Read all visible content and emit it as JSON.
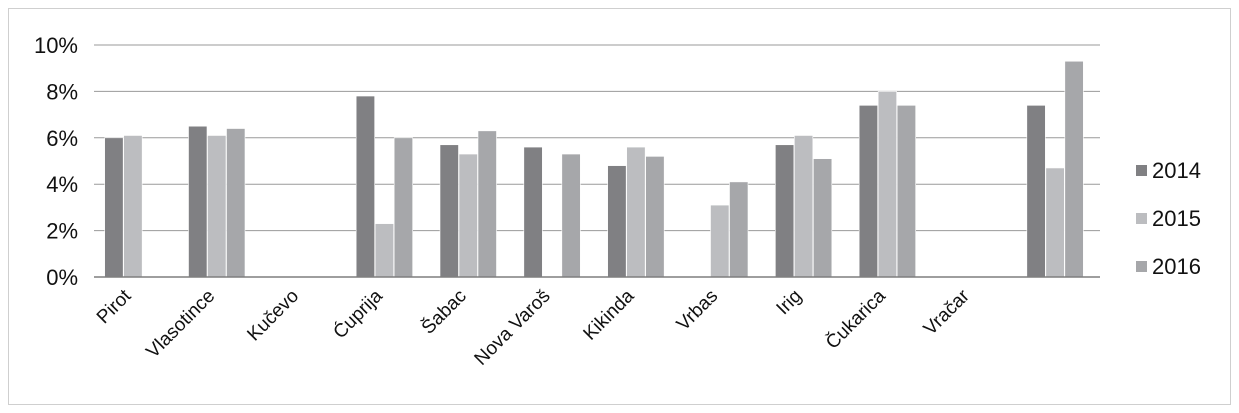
{
  "chart_data": {
    "type": "bar",
    "categories": [
      "Pirot",
      "Vlasotince",
      "Kučevo",
      "Ćuprija",
      "Šabac",
      "Nova Varoš",
      "Kikinda",
      "Vrbas",
      "Irig",
      "Čukarica",
      "Vračar",
      ""
    ],
    "series": [
      {
        "name": "2014",
        "color": "#808083",
        "values": [
          6.0,
          6.5,
          null,
          7.8,
          5.7,
          5.6,
          4.8,
          null,
          5.7,
          7.4,
          null,
          7.4
        ]
      },
      {
        "name": "2015",
        "color": "#bcbdc0",
        "values": [
          6.1,
          6.1,
          null,
          2.3,
          5.3,
          null,
          5.6,
          3.1,
          6.1,
          8.0,
          null,
          4.7
        ]
      },
      {
        "name": "2016",
        "color": "#a6a7aa",
        "values": [
          null,
          6.4,
          null,
          6.0,
          6.3,
          5.3,
          5.2,
          4.1,
          5.1,
          7.4,
          null,
          9.3
        ]
      }
    ],
    "y_ticks": [
      "0%",
      "2%",
      "4%",
      "6%",
      "8%",
      "10%"
    ],
    "ylim": [
      0,
      10
    ],
    "grid": true,
    "legend": "right"
  }
}
